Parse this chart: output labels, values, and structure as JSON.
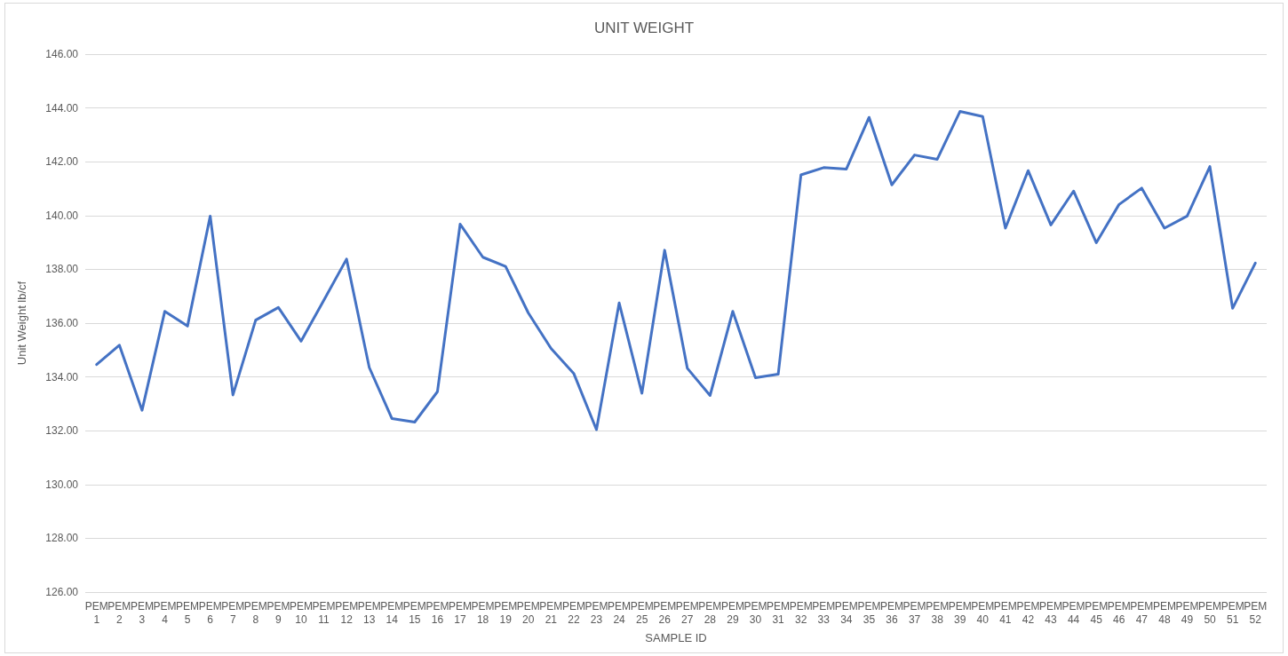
{
  "chart_data": {
    "type": "line",
    "title": "UNIT WEIGHT",
    "xlabel": "SAMPLE ID",
    "ylabel": "Unit Weight lb/cf",
    "categories": [
      "PEM 1",
      "PEM 2",
      "PEM 3",
      "PEM 4",
      "PEM 5",
      "PEM 6",
      "PEM 7",
      "PEM 8",
      "PEM 9",
      "PEM 10",
      "PEM 11",
      "PEM 12",
      "PEM 13",
      "PEM 14",
      "PEM 15",
      "PEM 16",
      "PEM 17",
      "PEM 18",
      "PEM 19",
      "PEM 20",
      "PEM 21",
      "PEM 22",
      "PEM 23",
      "PEM 24",
      "PEM 25",
      "PEM 26",
      "PEM 27",
      "PEM 28",
      "PEM 29",
      "PEM 30",
      "PEM 31",
      "PEM 32",
      "PEM 33",
      "PEM 34",
      "PEM 35",
      "PEM 36",
      "PEM 37",
      "PEM 38",
      "PEM 39",
      "PEM 40",
      "PEM 41",
      "PEM 42",
      "PEM 43",
      "PEM 44",
      "PEM 45",
      "PEM 46",
      "PEM 47",
      "PEM 48",
      "PEM 49",
      "PEM 50",
      "PEM 51",
      "PEM 52"
    ],
    "series": [
      {
        "color": "#4472c4",
        "values": [
          134.46,
          135.18,
          132.76,
          136.44,
          135.89,
          139.98,
          133.33,
          136.11,
          136.58,
          135.33,
          136.85,
          138.38,
          134.35,
          132.45,
          132.32,
          133.45,
          139.68,
          138.45,
          138.11,
          136.38,
          135.06,
          134.13,
          132.04,
          136.75,
          133.39,
          138.71,
          134.32,
          133.31,
          136.44,
          133.97,
          134.1,
          141.51,
          141.78,
          141.73,
          143.65,
          141.14,
          142.25,
          142.09,
          143.87,
          143.68,
          139.53,
          141.67,
          139.65,
          140.91,
          138.99,
          140.41,
          141.02,
          139.53,
          139.98,
          141.82,
          136.55,
          138.23
        ]
      }
    ],
    "ylim": [
      126,
      146
    ],
    "yticks": [
      {
        "value": 126,
        "label": "126.00"
      },
      {
        "value": 128,
        "label": "128.00"
      },
      {
        "value": 130,
        "label": "130.00"
      },
      {
        "value": 132,
        "label": "132.00"
      },
      {
        "value": 134,
        "label": "134.00"
      },
      {
        "value": 136,
        "label": "136.00"
      },
      {
        "value": 138,
        "label": "138.00"
      },
      {
        "value": 140,
        "label": "140.00"
      },
      {
        "value": 142,
        "label": "142.00"
      },
      {
        "value": 144,
        "label": "144.00"
      },
      {
        "value": 146,
        "label": "146.00"
      }
    ],
    "grid": "y",
    "marker": "none",
    "line_style": "solid"
  }
}
